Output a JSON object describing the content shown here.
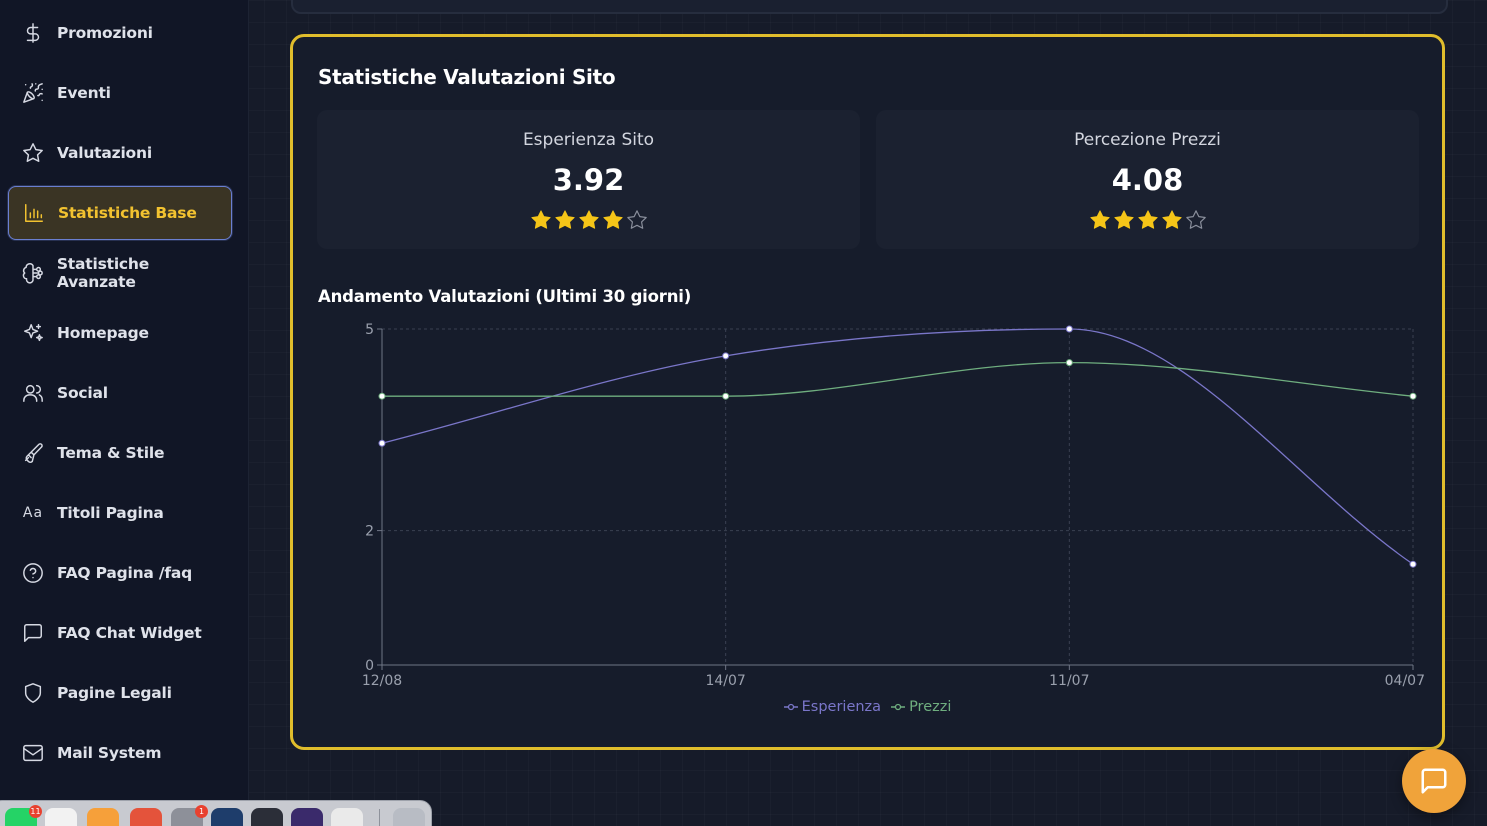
{
  "sidebar": {
    "items": [
      {
        "label": "Promozioni",
        "icon": "dollar-icon"
      },
      {
        "label": "Eventi",
        "icon": "party-popper-icon"
      },
      {
        "label": "Valutazioni",
        "icon": "star-icon"
      },
      {
        "label": "Statistiche Base",
        "icon": "bar-chart-icon",
        "active": true
      },
      {
        "label": "Statistiche Avanzate",
        "icon": "brain-icon"
      },
      {
        "label": "Homepage",
        "icon": "sparkles-icon"
      },
      {
        "label": "Social",
        "icon": "users-icon"
      },
      {
        "label": "Tema & Stile",
        "icon": "paintbrush-icon"
      },
      {
        "label": "Titoli Pagina",
        "icon": "text-aa-icon"
      },
      {
        "label": "FAQ Pagina /faq",
        "icon": "help-circle-icon"
      },
      {
        "label": "FAQ Chat Widget",
        "icon": "message-square-icon"
      },
      {
        "label": "Pagine Legali",
        "icon": "shield-icon"
      },
      {
        "label": "Mail System",
        "icon": "mail-icon"
      }
    ],
    "text_icon_glyph": "Aa"
  },
  "card": {
    "title": "Statistiche Valutazioni Sito",
    "stats": [
      {
        "label": "Esperienza Sito",
        "value": "3.92",
        "stars": 4,
        "max_stars": 5
      },
      {
        "label": "Percezione Prezzi",
        "value": "4.08",
        "stars": 4,
        "max_stars": 5
      }
    ],
    "chart_title": "Andamento Valutazioni (Ultimi 30 giorni)"
  },
  "colors": {
    "accent_gold": "#e0bd2c",
    "star_fill": "#f5c518",
    "series_esperienza": "#7a76c9",
    "series_prezzi": "#6fae7f",
    "chat_button": "#f0a33a"
  },
  "chart_data": {
    "type": "line",
    "title": "Andamento Valutazioni (Ultimi 30 giorni)",
    "categories": [
      "12/08",
      "14/07",
      "11/07",
      "04/07"
    ],
    "series": [
      {
        "name": "Esperienza",
        "values": [
          3.3,
          4.6,
          5.0,
          1.5
        ]
      },
      {
        "name": "Prezzi",
        "values": [
          4.0,
          4.0,
          4.5,
          4.0
        ]
      }
    ],
    "ylim": [
      0,
      5
    ],
    "yticks": [
      "0",
      "2",
      "5"
    ],
    "grid": true,
    "legend": "bottom"
  },
  "dock": {
    "apps": [
      {
        "name": "whatsapp-icon",
        "color": "#25d366",
        "badge": "11"
      },
      {
        "name": "game-controller-icon",
        "color": "#f2f2f2",
        "badge": ""
      },
      {
        "name": "folder-icon",
        "color": "#f6a03a",
        "badge": ""
      },
      {
        "name": "git-icon",
        "color": "#e4533b",
        "badge": ""
      },
      {
        "name": "system-settings-icon",
        "color": "#8d9099",
        "badge": "1"
      },
      {
        "name": "app-icon-blue",
        "color": "#1e3d6b",
        "badge": ""
      },
      {
        "name": "app-icon-dark",
        "color": "#2b2e38",
        "badge": ""
      },
      {
        "name": "app-icon-purple",
        "color": "#3a2a6b",
        "badge": ""
      },
      {
        "name": "chrome-icon",
        "color": "#eaeaea",
        "badge": ""
      },
      {
        "name": "trash-icon",
        "color": "#b8bcc4",
        "badge": ""
      }
    ]
  }
}
